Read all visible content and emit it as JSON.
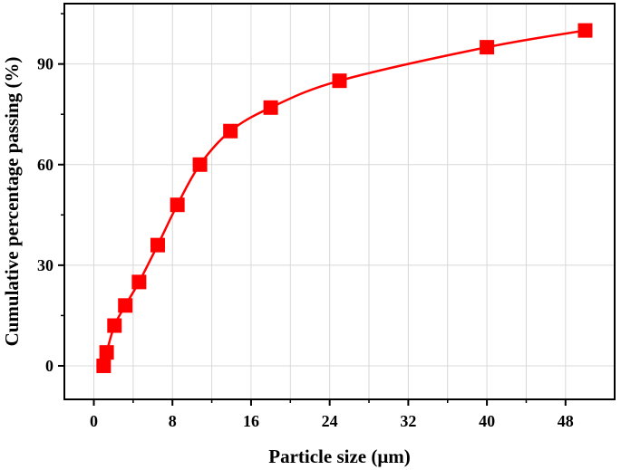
{
  "chart_data": {
    "type": "line",
    "title": "",
    "xlabel": "Particle size (μm)",
    "ylabel": "Cumulative percentage passing (%)",
    "xlim": [
      -3,
      53
    ],
    "ylim": [
      -10,
      108
    ],
    "xticks": [
      0,
      8,
      16,
      24,
      32,
      40,
      48
    ],
    "xtick_labels": [
      "0",
      "8",
      "16",
      "24",
      "32",
      "40",
      "48"
    ],
    "yticks": [
      0,
      30,
      60,
      90
    ],
    "ytick_labels": [
      "0",
      "30",
      "60",
      "90"
    ],
    "grid": true,
    "legend": "none",
    "series": [
      {
        "color": "#ff0000",
        "marker": "square",
        "x": [
          1.0,
          1.3,
          2.1,
          3.2,
          4.6,
          6.5,
          8.5,
          10.8,
          13.9,
          18.0,
          25.0,
          40.0,
          50.0
        ],
        "y": [
          0,
          4,
          12,
          18,
          25,
          36,
          48,
          60,
          70,
          77,
          85,
          95,
          100
        ]
      }
    ]
  },
  "colors": {
    "series": "#ff0000",
    "axis": "#000000",
    "grid": "#d8d8d8"
  }
}
